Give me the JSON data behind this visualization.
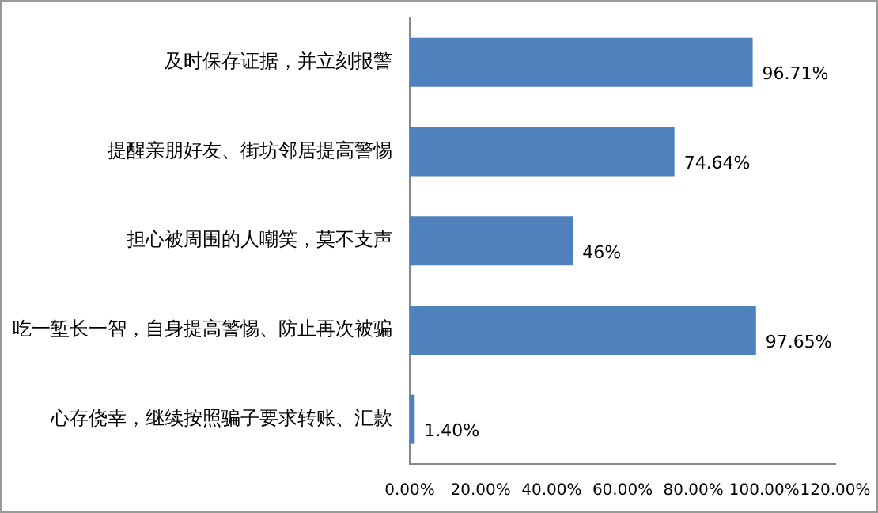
{
  "chart_data": {
    "type": "bar",
    "orientation": "horizontal",
    "categories": [
      "及时保存证据，并立刻报警",
      "提醒亲朋好友、街坊邻居提高警惕",
      "担心被周围的人嘲笑，莫不支声",
      "吃一堑长一智，自身提高警惕、防止再次被骗",
      "心存侥幸，继续按照骗子要求转账、汇款"
    ],
    "values": [
      96.71,
      74.64,
      46,
      97.65,
      1.4
    ],
    "value_labels": [
      "96.71%",
      "74.64%",
      "46%",
      "97.65%",
      "1.40%"
    ],
    "color": "#4f81bd",
    "xlim": [
      0,
      120
    ],
    "xticks": [
      {
        "value": 0,
        "label": "0.00%"
      },
      {
        "value": 20,
        "label": "20.00%"
      },
      {
        "value": 40,
        "label": "40.00%"
      },
      {
        "value": 60,
        "label": "60.00%"
      },
      {
        "value": 80,
        "label": "80.00%"
      },
      {
        "value": 100,
        "label": "100.00%"
      },
      {
        "value": 120,
        "label": "120.00%"
      }
    ],
    "grid": false,
    "legend": false
  }
}
